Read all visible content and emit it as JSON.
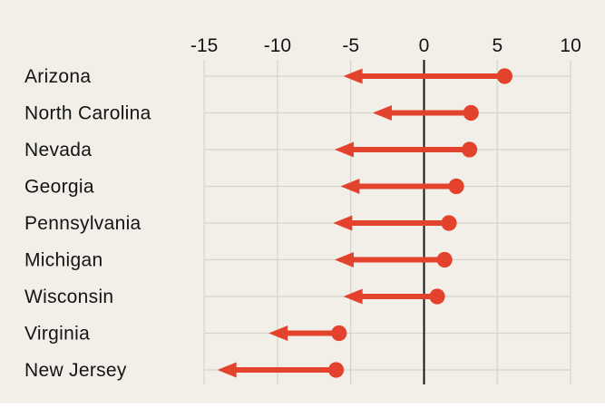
{
  "colors": {
    "background": "#f1efe8",
    "accent_red": "#e3422d",
    "grid": "#d6d3c9",
    "zero_line": "#161616",
    "text": "#141414"
  },
  "chart_data": {
    "type": "arrow-dumbbell",
    "orientation": "horizontal",
    "title": "",
    "xlabel": "",
    "ylabel": "",
    "x_axis": {
      "min": -15,
      "max": 10,
      "tick_values": [
        -15,
        -10,
        -5,
        0,
        5,
        10
      ],
      "tick_labels": [
        "-15",
        "-10",
        "-5",
        "0",
        "5",
        "10"
      ],
      "tick_position": "top",
      "zero_line": true
    },
    "categories": [
      "Arizona",
      "North Carolina",
      "Nevada",
      "Georgia",
      "Pennsylvania",
      "Michigan",
      "Wisconsin",
      "Virginia",
      "New Jersey"
    ],
    "series": [
      {
        "name": "start (dot)",
        "values": [
          5.5,
          3.2,
          3.1,
          2.2,
          1.7,
          1.4,
          0.9,
          -5.8,
          -6.0
        ]
      },
      {
        "name": "end (arrow tip)",
        "values": [
          -5.5,
          -3.5,
          -6.1,
          -5.7,
          -6.2,
          -6.1,
          -5.5,
          -10.6,
          -14.1
        ]
      }
    ],
    "legend": "none",
    "grid": "vertical gridlines every 5 units; one horizontal gridline per category row",
    "marker_note": "red dot at start value, red arrow pointing left to end value"
  }
}
